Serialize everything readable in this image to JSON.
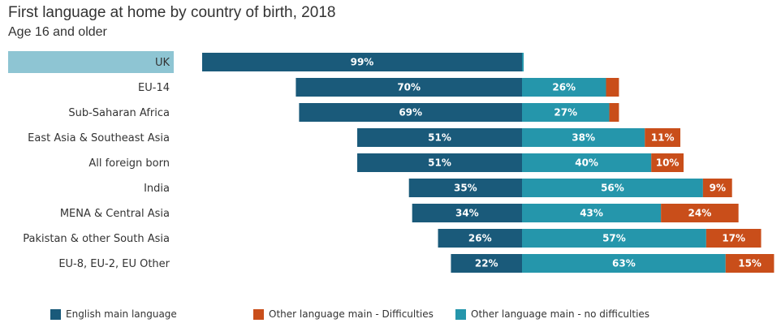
{
  "chart_data": {
    "type": "bar",
    "orientation": "horizontal",
    "stacked": true,
    "diverging": true,
    "title": "First language at home by country of birth, 2018",
    "subtitle": "Age 16 and older",
    "xlabel": "",
    "ylabel": "",
    "highlighted_category": "UK",
    "categories": [
      "UK",
      "EU-14",
      "Sub-Saharan Africa",
      "East Asia & Southeast Asia",
      "All foreign born",
      "India",
      "MENA & Central Asia",
      "Pakistan & other South Asia",
      "EU-8, EU-2, EU Other"
    ],
    "series": [
      {
        "name": "English main language",
        "color": "#1a5a7a",
        "values": [
          99,
          70,
          69,
          51,
          51,
          35,
          34,
          26,
          22
        ],
        "labels": [
          "99%",
          "70%",
          "69%",
          "51%",
          "51%",
          "35%",
          "34%",
          "26%",
          "22%"
        ]
      },
      {
        "name": "Other language main - no difficulties",
        "color": "#2596ab",
        "values": [
          0.5,
          26,
          27,
          38,
          40,
          56,
          43,
          57,
          63
        ],
        "labels": [
          "",
          "26%",
          "27%",
          "38%",
          "40%",
          "56%",
          "43%",
          "57%",
          "63%"
        ]
      },
      {
        "name": "Other language main - Difficulties",
        "color": "#c94e1a",
        "values": [
          0,
          4,
          3,
          11,
          10,
          9,
          24,
          17,
          15
        ],
        "labels": [
          "",
          "",
          "",
          "11%",
          "10%",
          "9%",
          "24%",
          "17%",
          "15%"
        ]
      }
    ],
    "legend": {
      "placement": "bottom",
      "items": [
        {
          "name": "English main language",
          "color": "#1a5a7a"
        },
        {
          "name": "Other language main - Difficulties",
          "color": "#c94e1a"
        },
        {
          "name": "Other language main - no difficulties",
          "color": "#2596ab"
        }
      ]
    },
    "colors": {
      "highlight_band": "#8ec5d3"
    }
  }
}
